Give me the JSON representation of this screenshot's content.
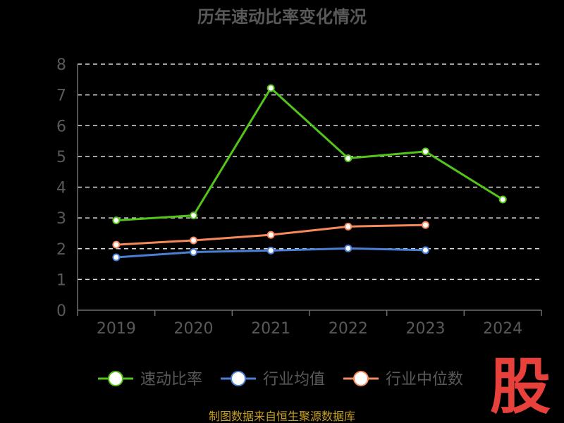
{
  "chart_data": {
    "type": "line",
    "title": "历年速动比率变化情况",
    "categories": [
      "2019",
      "2020",
      "2021",
      "2022",
      "2023",
      "2024"
    ],
    "ylim": [
      0,
      8
    ],
    "yticks": [
      "0",
      "1",
      "2",
      "3",
      "4",
      "5",
      "6",
      "7",
      "8"
    ],
    "grid": true,
    "legend_position": "bottom",
    "series": [
      {
        "name": "速动比率",
        "color": "#52c41a",
        "values": [
          2.92,
          3.08,
          7.22,
          4.94,
          5.16,
          3.6
        ]
      },
      {
        "name": "行业均值",
        "color": "#4a7fd4",
        "values": [
          1.72,
          1.89,
          1.94,
          2.01,
          1.95,
          null
        ]
      },
      {
        "name": "行业中位数",
        "color": "#f5895a",
        "values": [
          2.13,
          2.27,
          2.45,
          2.72,
          2.77,
          null
        ]
      }
    ]
  },
  "source": "制图数据来自恒生聚源数据库",
  "logo_text": "股"
}
